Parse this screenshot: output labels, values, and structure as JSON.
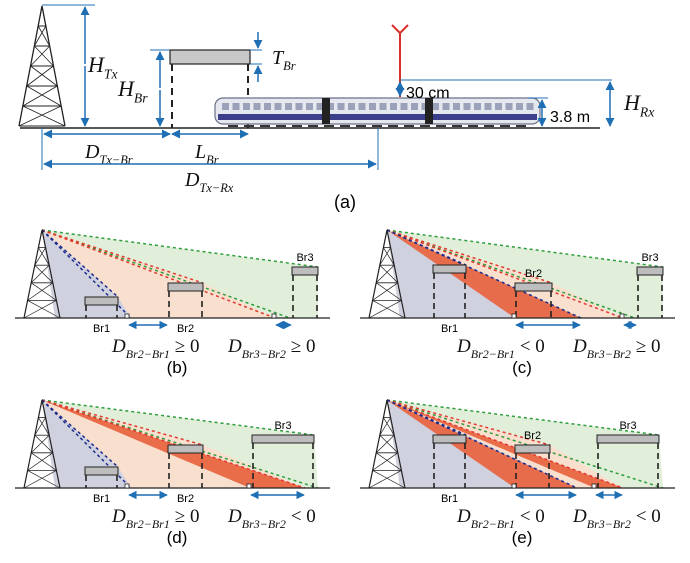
{
  "panel_a": {
    "h_tx": {
      "main": "H",
      "sub": "Tx"
    },
    "h_br": {
      "main": "H",
      "sub": "Br"
    },
    "t_br": {
      "main": "T",
      "sub": "Br"
    },
    "antenna_gap": "30 cm",
    "train_height": "3.8 m",
    "h_rx": {
      "main": "H",
      "sub": "Rx"
    },
    "d_tx_br": {
      "main": "D",
      "sub": "Tx−Br"
    },
    "l_br": {
      "main": "L",
      "sub": "Br"
    },
    "d_tx_rx": {
      "main": "D",
      "sub": "Tx−Rx"
    },
    "caption": "(a)"
  },
  "panels": [
    {
      "bridges": [
        "Br1",
        "Br2",
        "Br3"
      ],
      "conditions": [
        {
          "main": "D",
          "sub": "Br2−Br1",
          "rel": "≥ 0"
        },
        {
          "main": "D",
          "sub": "Br3−Br2",
          "rel": "≥ 0"
        }
      ],
      "caption": "(b)"
    },
    {
      "bridges": [
        "Br1",
        "Br2",
        "Br3"
      ],
      "conditions": [
        {
          "main": "D",
          "sub": "Br2−Br1",
          "rel": "< 0"
        },
        {
          "main": "D",
          "sub": "Br3−Br2",
          "rel": "≥ 0"
        }
      ],
      "caption": "(c)"
    },
    {
      "bridges": [
        "Br1",
        "Br2",
        "Br3"
      ],
      "conditions": [
        {
          "main": "D",
          "sub": "Br2−Br1",
          "rel": "≥ 0"
        },
        {
          "main": "D",
          "sub": "Br3−Br2",
          "rel": "< 0"
        }
      ],
      "caption": "(d)"
    },
    {
      "bridges": [
        "Br1",
        "Br2",
        "Br3"
      ],
      "conditions": [
        {
          "main": "D",
          "sub": "Br2−Br1",
          "rel": "< 0"
        },
        {
          "main": "D",
          "sub": "Br3−Br2",
          "rel": "< 0"
        }
      ],
      "caption": "(e)"
    }
  ]
}
